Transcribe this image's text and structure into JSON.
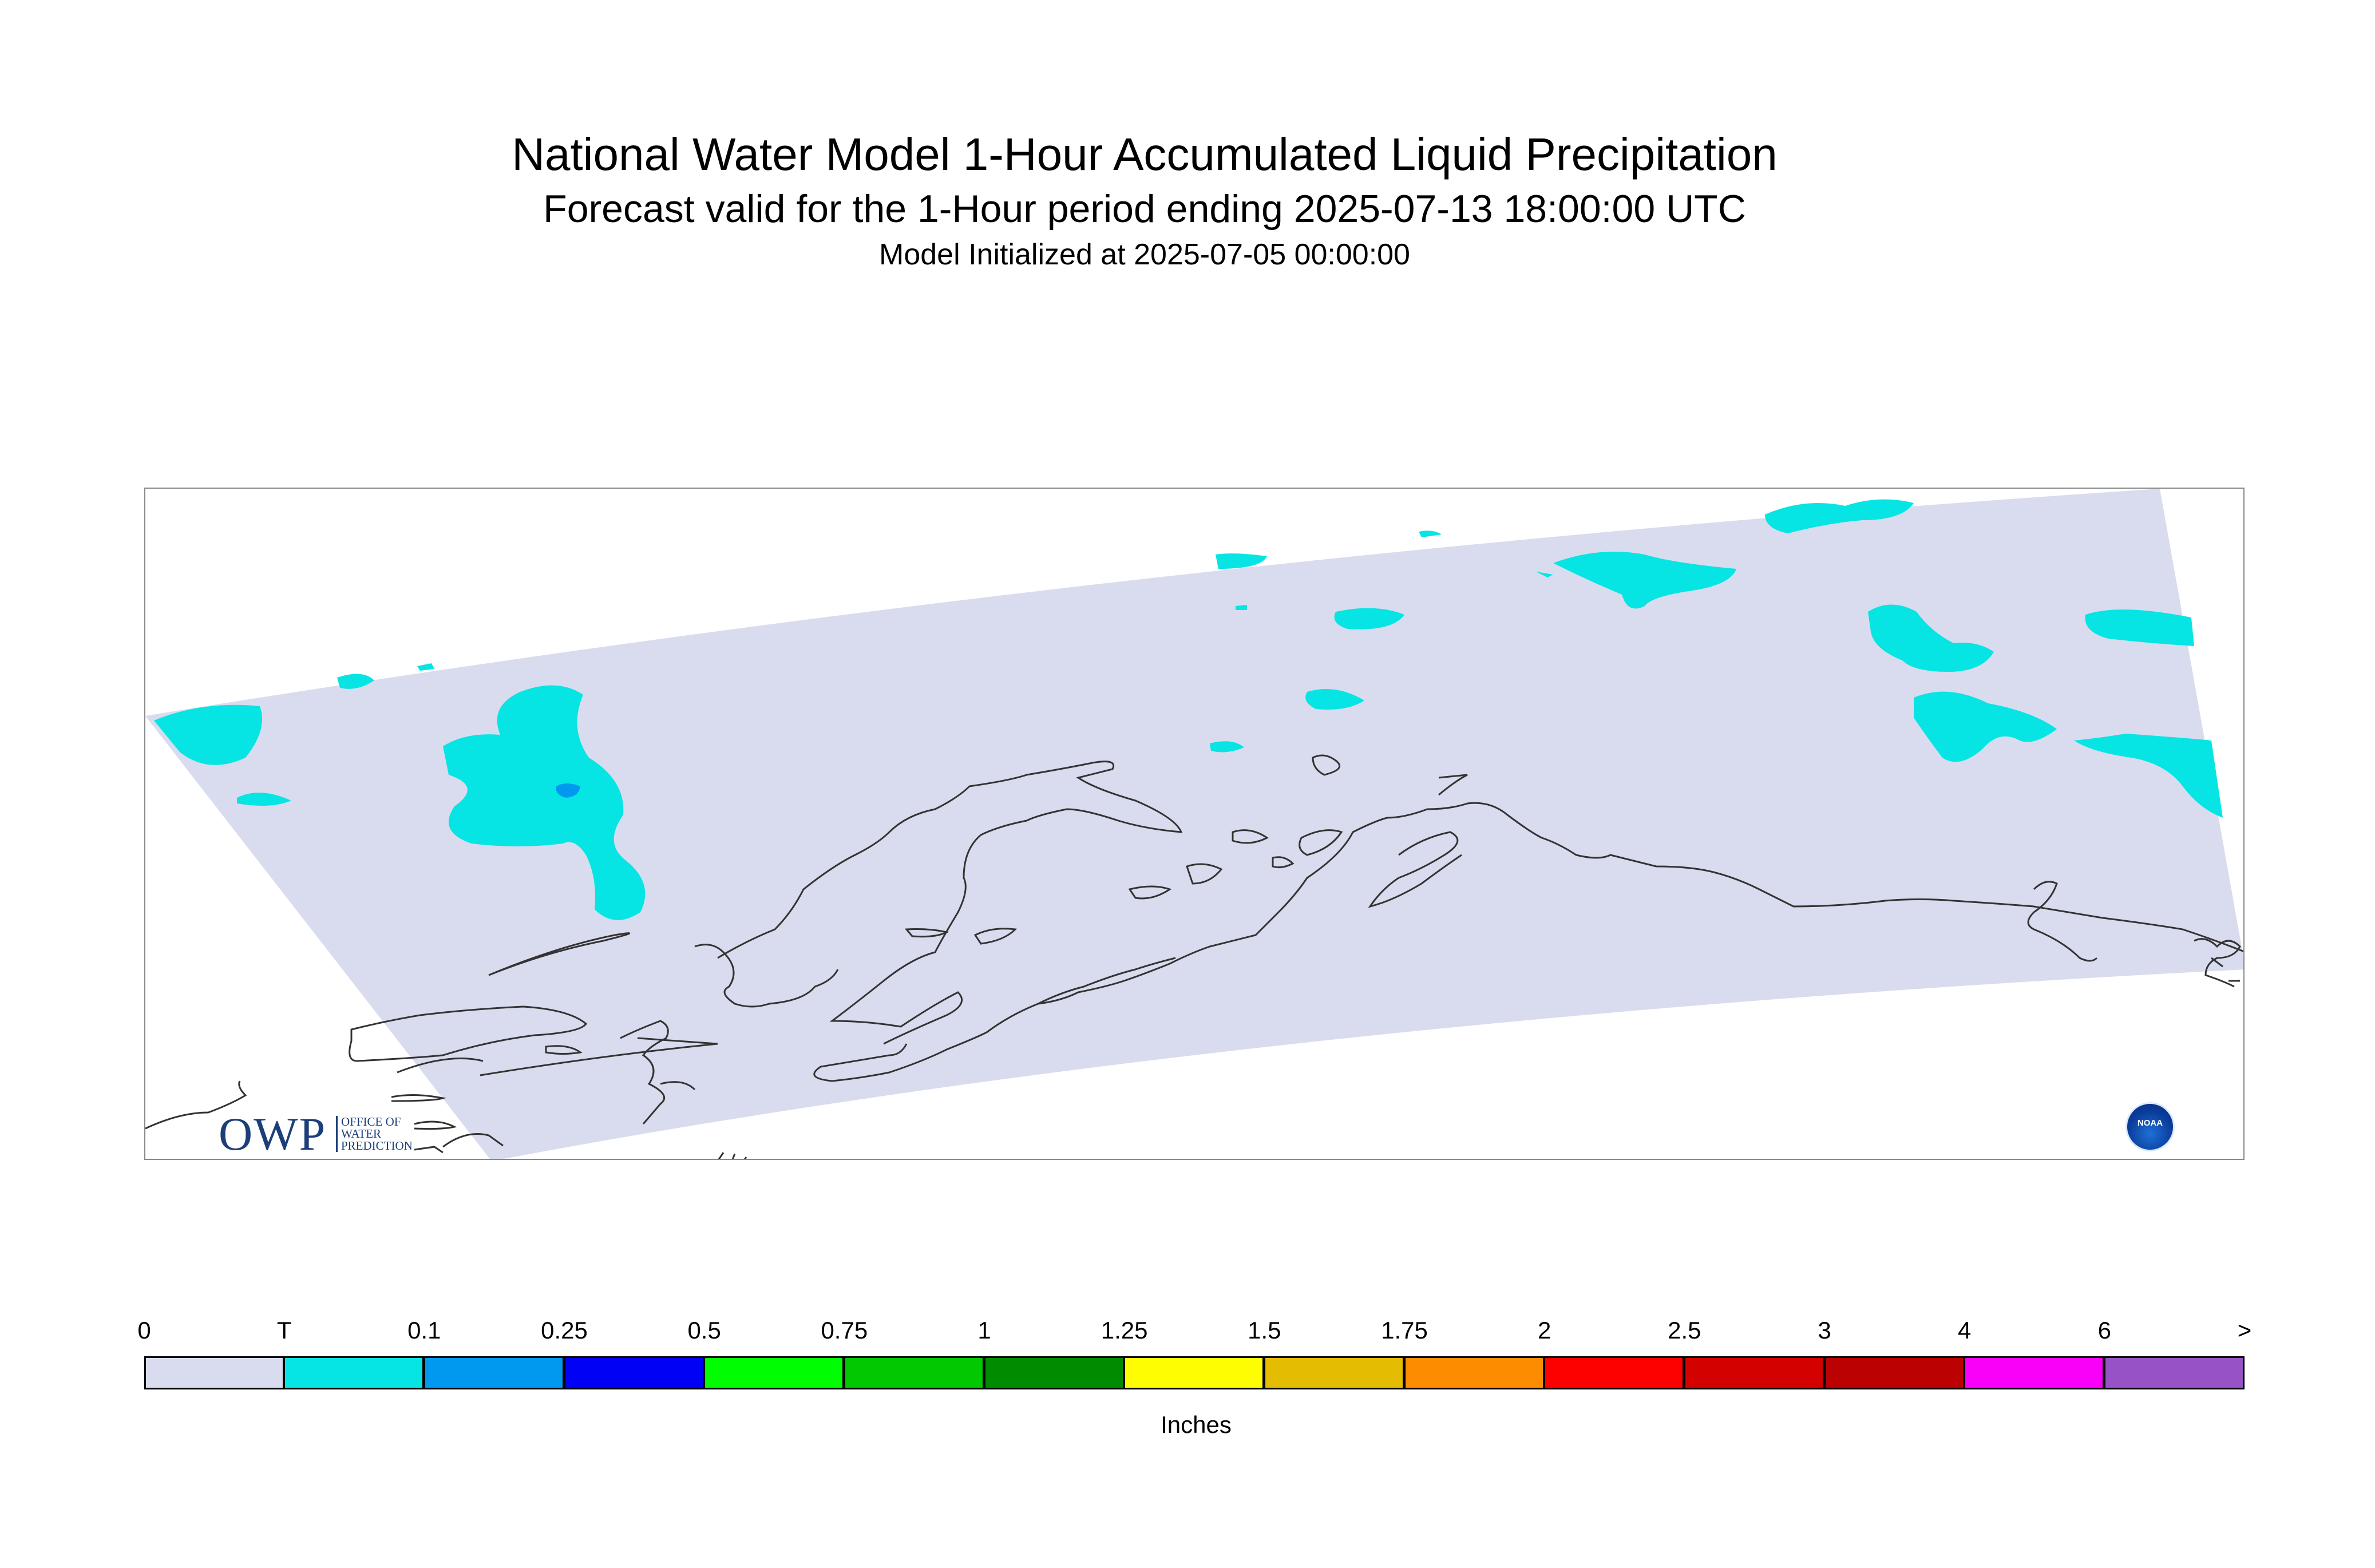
{
  "title": "National Water Model 1-Hour Accumulated Liquid Precipitation",
  "subtitle": "Forecast valid for the 1-Hour period ending 2025-07-13 18:00:00 UTC",
  "init_line": "Model Initialized at 2025-07-05 00:00:00",
  "logos": {
    "owp_mark": "OWP",
    "owp_text": "OFFICE OF WATER PREDICTION",
    "noaa_text": "NOAA"
  },
  "legend": {
    "units": "Inches",
    "tick_labels": [
      "0",
      "T",
      "0.1",
      "0.25",
      "0.5",
      "0.75",
      "1",
      "1.25",
      "1.5",
      "1.75",
      "2",
      "2.5",
      "3",
      "4",
      "6",
      ">"
    ],
    "colors": [
      "#d9dcee",
      "#06e5e3",
      "#0199f0",
      "#0101f5",
      "#01fd01",
      "#01c801",
      "#018b01",
      "#fefd01",
      "#e4bc01",
      "#fd8c01",
      "#fd0101",
      "#d40101",
      "#bb0101",
      "#f901f9",
      "#9753c6"
    ]
  },
  "map": {
    "domain_fill": "#d9dcee",
    "coast_color": "#333333"
  }
}
